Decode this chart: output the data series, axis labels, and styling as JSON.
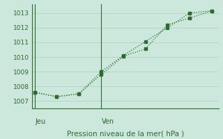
{
  "line1_x": [
    0,
    1,
    2,
    3,
    4,
    5,
    6,
    7,
    8
  ],
  "line1_y": [
    1007.6,
    1007.3,
    1007.5,
    1009.0,
    1010.1,
    1011.05,
    1012.0,
    1013.0,
    1013.15
  ],
  "line2_x": [
    0,
    1,
    2,
    3,
    4,
    5,
    6,
    7,
    8
  ],
  "line2_y": [
    1007.6,
    1007.3,
    1007.5,
    1008.8,
    1010.05,
    1010.55,
    1012.2,
    1012.65,
    1013.15
  ],
  "line_color": "#2d6a2d",
  "bg_color": "#cce8dc",
  "grid_color": "#b8d4c8",
  "xlabel": "Pression niveau de la mer( hPa )",
  "yticks": [
    1007,
    1008,
    1009,
    1010,
    1011,
    1012,
    1013
  ],
  "ylim": [
    1006.5,
    1013.6
  ],
  "xlim": [
    -0.1,
    8.3
  ],
  "jeu_x": 0.0,
  "ven_x": 3.0,
  "jeu_label": "Jeu",
  "ven_label": "Ven"
}
